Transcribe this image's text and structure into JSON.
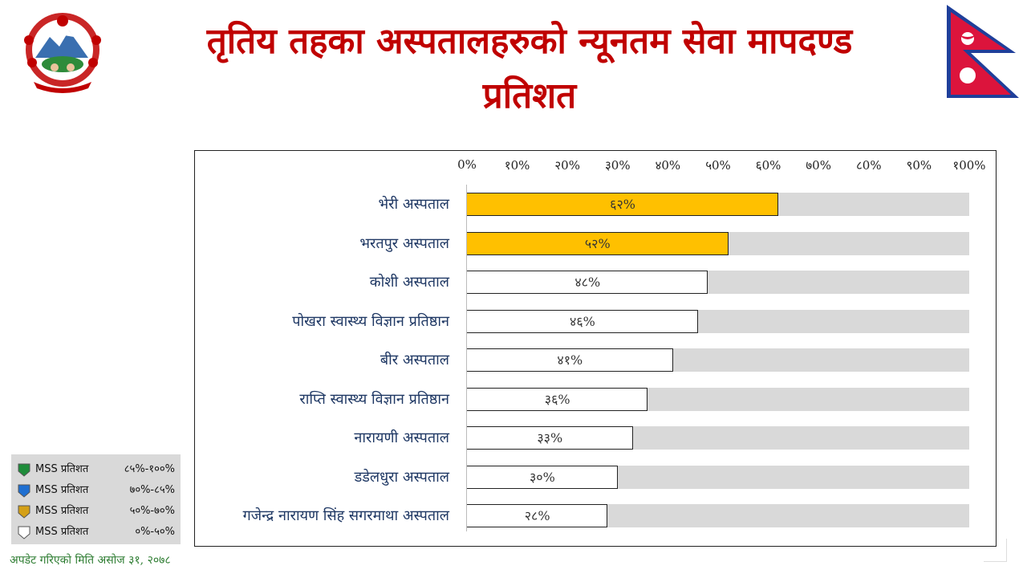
{
  "header": {
    "title_line1": "तृतिय तहका अस्पतालहरुको न्यूनतम सेवा मापदण्ड",
    "title_line2": "प्रतिशत"
  },
  "chart_data": {
    "type": "bar",
    "orientation": "horizontal",
    "categories": [
      "भेरी अस्पताल",
      "भरतपुर अस्पताल",
      "कोशी अस्पताल",
      "पोखरा स्वास्थ्य विज्ञान प्रतिष्ठान",
      "बीर अस्पताल",
      "राप्ति स्वास्थ्य विज्ञान प्रतिष्ठान",
      "नारायणी अस्पताल",
      "डडेलधुरा अस्पताल",
      "गजेन्द्र नारायण सिंह सगरमाथा अस्पताल"
    ],
    "values": [
      62,
      52,
      48,
      46,
      41,
      36,
      33,
      30,
      28
    ],
    "data_labels": [
      "६२%",
      "५२%",
      "४८%",
      "४६%",
      "४१%",
      "३६%",
      "३३%",
      "३०%",
      "२८%"
    ],
    "xlim": [
      0,
      100
    ],
    "tick_labels": [
      "0%",
      "१0%",
      "२0%",
      "३0%",
      "४0%",
      "५0%",
      "६0%",
      "७0%",
      "८0%",
      "९0%",
      "१00%"
    ],
    "colors": {
      "background_bar": "#d9d9d9",
      "band_85_100": "#1e8c3a",
      "band_70_85": "#1f6fd1",
      "band_50_70": "#ffc000",
      "band_0_50": "#ffffff"
    },
    "legend": [
      {
        "label": "MSS प्रतिशत",
        "range": "८५%-१००%",
        "color": "#1e8c3a"
      },
      {
        "label": "MSS प्रतिशत",
        "range": "७०%-८५%",
        "color": "#1f6fd1"
      },
      {
        "label": "MSS प्रतिशत",
        "range": "५०%-७०%",
        "color": "#d4a017"
      },
      {
        "label": "MSS प्रतिशत",
        "range": "०%-५०%",
        "color": "#ffffff"
      }
    ],
    "legend_position": "bottom-left"
  },
  "footer": {
    "updated": "अपडेट गरिएको मिति असोज ३१, २०७८"
  },
  "icons": {
    "emblem": "nepal-emblem-icon",
    "flag": "nepal-flag-icon"
  }
}
